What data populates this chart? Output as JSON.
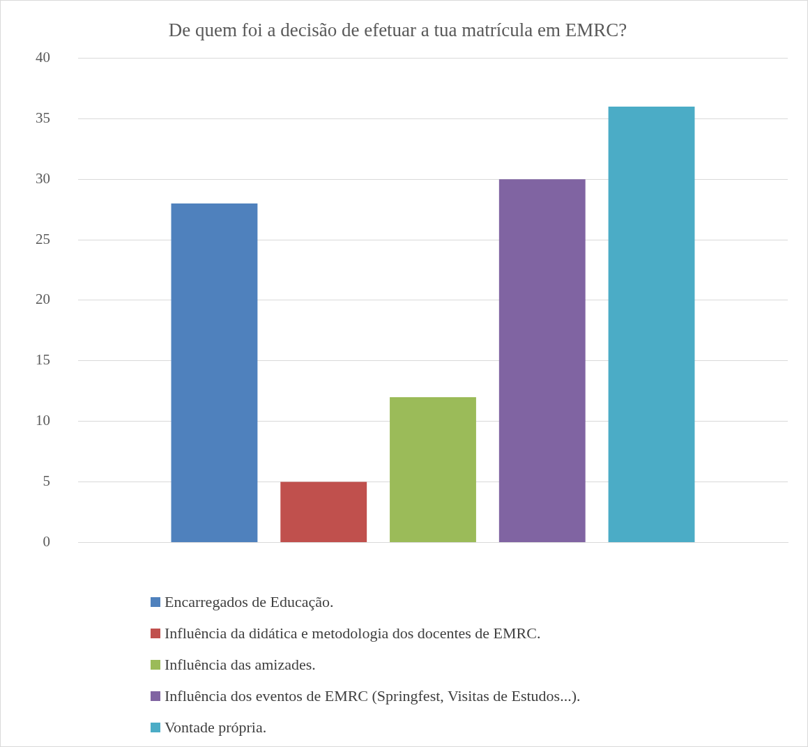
{
  "chart_data": {
    "type": "bar",
    "title": "De quem foi a decisão de efetuar a tua matrícula em EMRC?",
    "categories": [
      null
    ],
    "series": [
      {
        "name": "Encarregados de Educação.",
        "color": "#4f81bd",
        "values": [
          28
        ]
      },
      {
        "name": "Influência da didática e metodologia dos docentes de EMRC.",
        "color": "#c0504d",
        "values": [
          5
        ]
      },
      {
        "name": "Influência das amizades.",
        "color": "#9bbb59",
        "values": [
          12
        ]
      },
      {
        "name": "Influência dos eventos de EMRC (Springfest, Visitas de Estudos...).",
        "color": "#8064a2",
        "values": [
          30
        ]
      },
      {
        "name": "Vontade própria.",
        "color": "#4bacc6",
        "values": [
          36
        ]
      }
    ],
    "ylim": [
      0,
      40
    ],
    "yticks": [
      0,
      5,
      10,
      15,
      20,
      25,
      30,
      35,
      40
    ],
    "grid": "y",
    "legend": "bottom"
  }
}
